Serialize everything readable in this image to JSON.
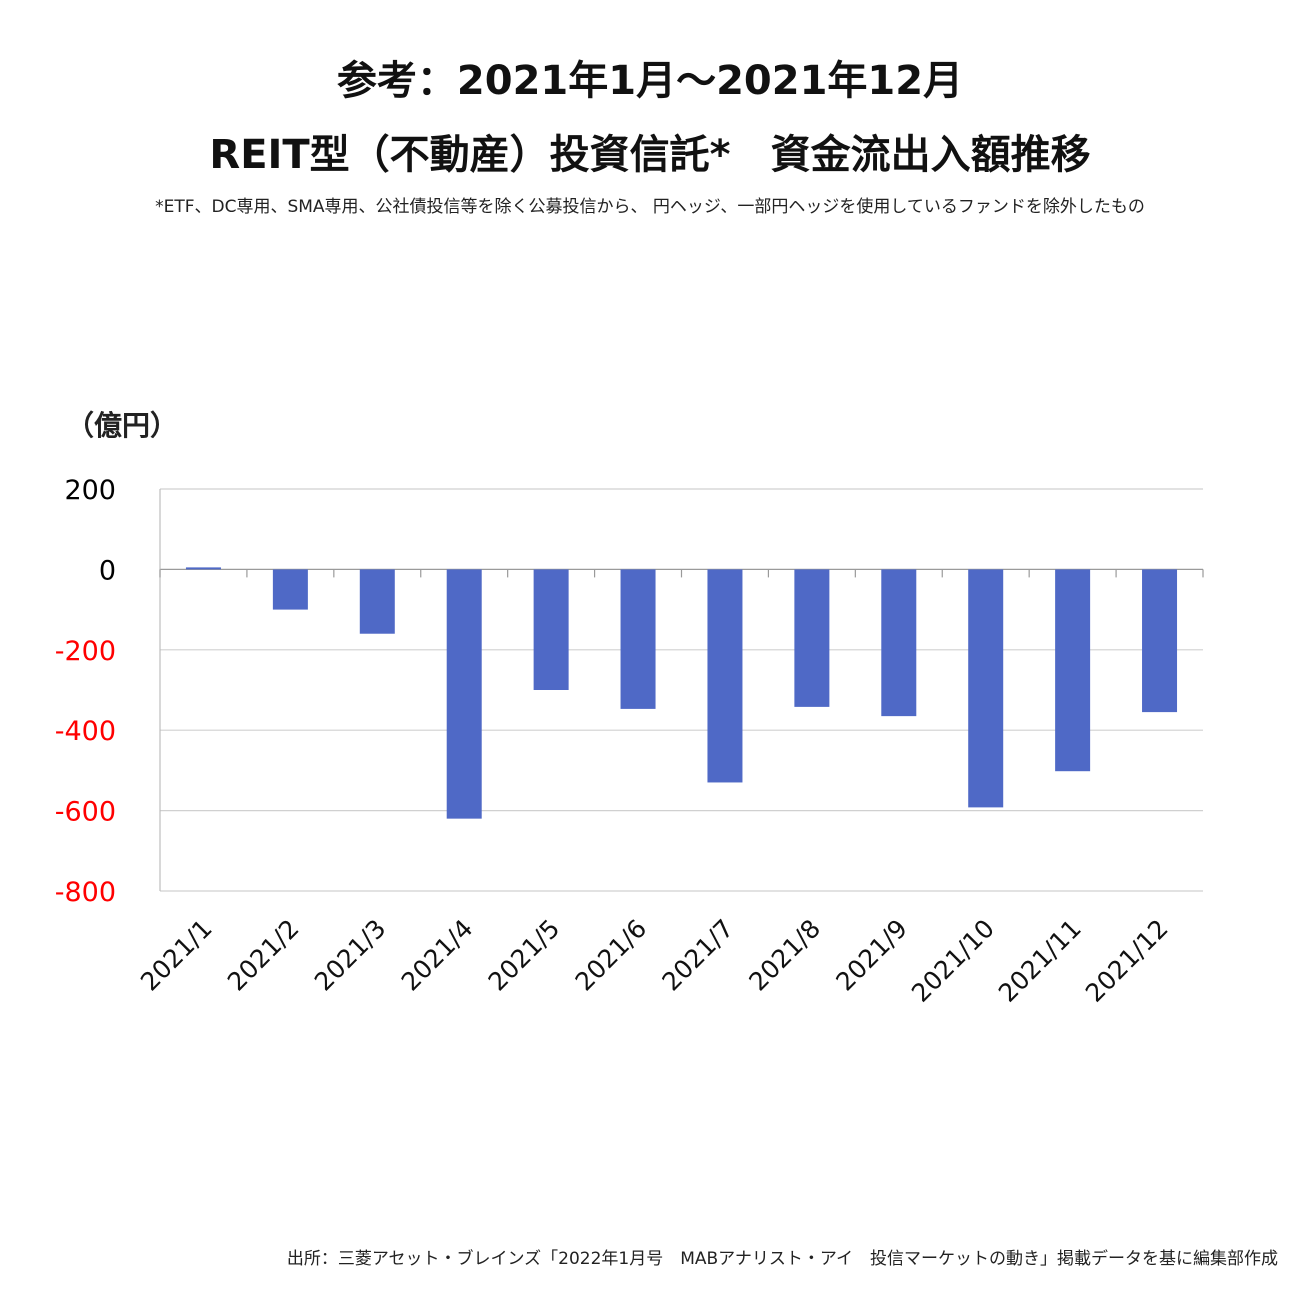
{
  "header": {
    "title_line1": "参考：2021年1月～2021年12月",
    "title_line2": "REIT型（不動産）投資信託*　資金流出入額推移",
    "footnote": "*ETF、DC専用、SMA専用、公社債投信等を除く公募投信から、 円ヘッジ、一部円ヘッジを使用しているファンドを除外したもの"
  },
  "chart_data": {
    "type": "bar",
    "unit_label": "（億円）",
    "categories": [
      "2021/1",
      "2021/2",
      "2021/3",
      "2021/4",
      "2021/5",
      "2021/6",
      "2021/7",
      "2021/8",
      "2021/9",
      "2021/10",
      "2021/11",
      "2021/12"
    ],
    "series": [
      {
        "values": [
          5,
          -100,
          -160,
          -620,
          -300,
          -347,
          -530,
          -342,
          -365,
          -592,
          -502,
          -355
        ]
      }
    ],
    "ylim": [
      -800,
      200
    ],
    "yticks": [
      200,
      0,
      -200,
      -400,
      -600,
      -800
    ],
    "yticks_labels": [
      "200",
      "0",
      "-200",
      "-400",
      "-600",
      "-800"
    ],
    "grid": true,
    "colors": {
      "bar": "#4F69C6",
      "negative_tick": "#FF0000",
      "positive_tick": "#000000",
      "grid": "#D0D0D0"
    }
  },
  "footer": {
    "source": "出所：三菱アセット・ブレインズ「2022年1月号　MABアナリスト・アイ　投信マーケットの動き」掲載データを基に編集部作成"
  }
}
